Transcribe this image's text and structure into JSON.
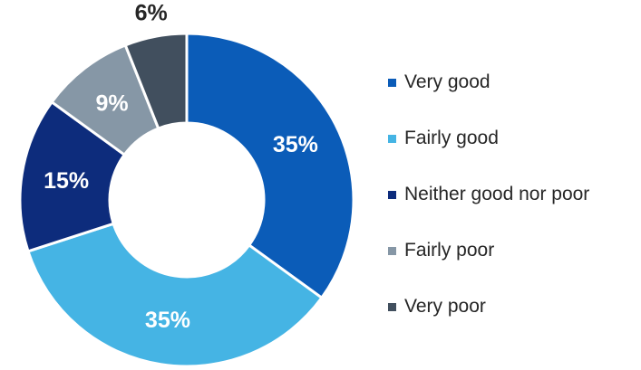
{
  "chart_data": {
    "type": "pie",
    "donut": true,
    "title": "",
    "categories": [
      "Very good",
      "Fairly good",
      "Neither good nor poor",
      "Fairly poor",
      "Very poor"
    ],
    "values": [
      35,
      35,
      15,
      9,
      6
    ],
    "data_labels": [
      "35%",
      "35%",
      "15%",
      "9%",
      "6%"
    ],
    "colors": [
      "#0b5cb8",
      "#45b4e4",
      "#0d2c7c",
      "#8697a6",
      "#414f5e"
    ],
    "label_colors": [
      "#ffffff",
      "#ffffff",
      "#ffffff",
      "#ffffff",
      "#262626"
    ],
    "label_placement": [
      "inside",
      "inside",
      "inside",
      "inside",
      "outside"
    ],
    "legend_position": "right",
    "start_angle": "12 o'clock",
    "direction": "clockwise"
  }
}
